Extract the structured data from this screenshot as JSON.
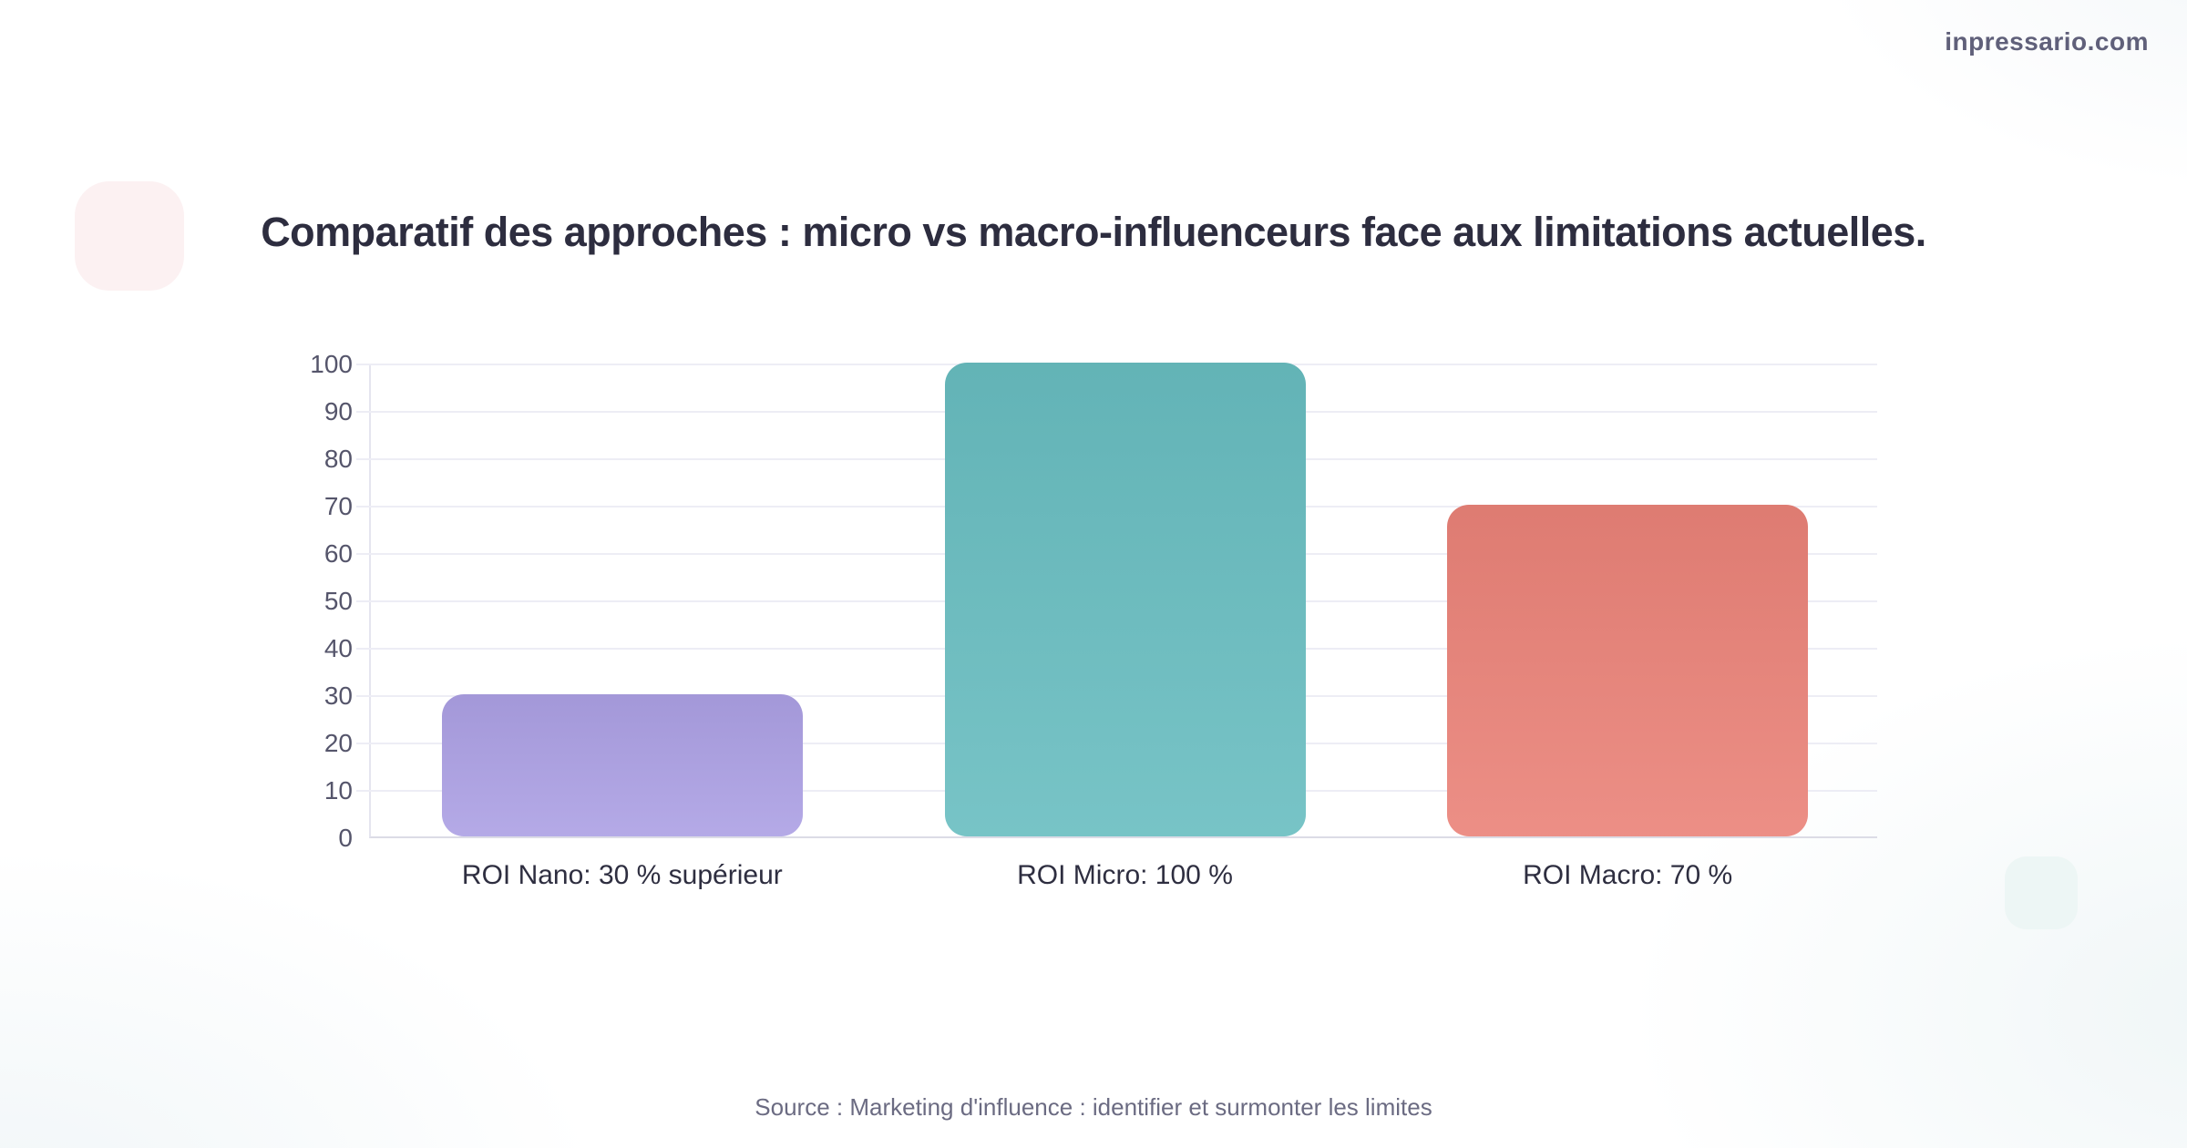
{
  "page": {
    "watermark": "inpressario.com",
    "title": "Comparatif des approches : micro vs macro-influenceurs face aux limitations actuelles.",
    "source": "Source : Marketing d'influence : identifier et surmonter les limites"
  },
  "chart_data": {
    "type": "bar",
    "title": "Comparatif des approches : micro vs macro-influenceurs face aux limitations actuelles.",
    "categories": [
      "ROI Nano: 30 % supérieur",
      "ROI Micro: 100 %",
      "ROI Macro: 70 %"
    ],
    "values": [
      30,
      100,
      70
    ],
    "bar_colors": [
      "#aca0e4",
      "#68bdc0",
      "#ea8278"
    ],
    "xlabel": "",
    "ylabel": "",
    "ylim": [
      0,
      100
    ],
    "yticks": [
      0,
      10,
      20,
      30,
      40,
      50,
      60,
      70,
      80,
      90,
      100
    ],
    "grid": true,
    "legend": false,
    "source": "Source : Marketing d'influence : identifier et surmonter les limites"
  },
  "decorations": {
    "top_left_squircle_color": "#fcf1f2",
    "bottom_right_squircle_color": "#edf6f5"
  }
}
